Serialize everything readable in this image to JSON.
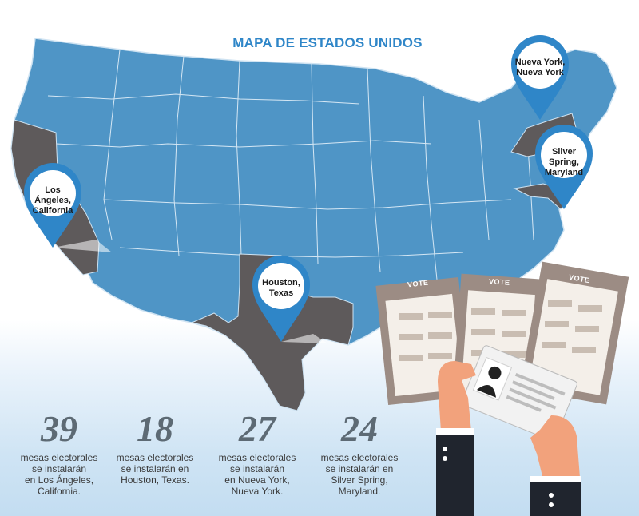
{
  "title": "MAPA DE ESTADOS UNIDOS",
  "pins": [
    {
      "label": "Los Ángeles,\nCalifornia"
    },
    {
      "label": "Houston,\nTexas"
    },
    {
      "label": "Nueva York,\nNueva York"
    },
    {
      "label": "Silver Spring,\nMaryland"
    }
  ],
  "stats": [
    {
      "number": "39",
      "text": "mesas electorales\nse instalarán\nen Los Ángeles,\nCalifornia."
    },
    {
      "number": "18",
      "text": "mesas electorales\nse instalarán en\nHouston, Texas."
    },
    {
      "number": "27",
      "text": "mesas electorales\nse instalarán\nen Nueva York,\nNueva York."
    },
    {
      "number": "24",
      "text": "mesas electorales\nse instalarán en\nSilver Spring,\nMaryland."
    }
  ],
  "ballot_label": "VOTE",
  "colors": {
    "map": "#4f95c6",
    "highlight": "#5e5a5b",
    "pin": "#2f86c8",
    "title": "#2f86c8"
  },
  "icons": [
    "map-pin-icon",
    "ballot-icon",
    "voter-id-card-icon",
    "hands-icon"
  ]
}
